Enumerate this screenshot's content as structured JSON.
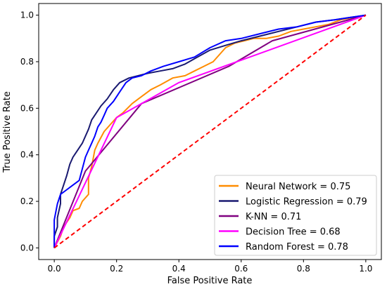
{
  "chart_data": {
    "type": "line",
    "title": "",
    "xlabel": "False Positive Rate",
    "ylabel": "True Positive Rate",
    "xlim": [
      -0.05,
      1.05
    ],
    "ylim": [
      -0.05,
      1.05
    ],
    "xticks": [
      "0.0",
      "0.2",
      "0.4",
      "0.6",
      "0.8",
      "1.0"
    ],
    "yticks": [
      "0.0",
      "0.2",
      "0.4",
      "0.6",
      "0.8",
      "1.0"
    ],
    "grid": false,
    "legend_position": "bottom-right",
    "series": [
      {
        "name": "Neural Network  = 0.75",
        "color": "#ff8c00",
        "points": [
          [
            0.0,
            0.0
          ],
          [
            0.02,
            0.05
          ],
          [
            0.03,
            0.09
          ],
          [
            0.05,
            0.13
          ],
          [
            0.06,
            0.16
          ],
          [
            0.08,
            0.17
          ],
          [
            0.09,
            0.2
          ],
          [
            0.11,
            0.23
          ],
          [
            0.11,
            0.3
          ],
          [
            0.12,
            0.35
          ],
          [
            0.13,
            0.42
          ],
          [
            0.14,
            0.45
          ],
          [
            0.16,
            0.5
          ],
          [
            0.18,
            0.53
          ],
          [
            0.2,
            0.56
          ],
          [
            0.22,
            0.58
          ],
          [
            0.25,
            0.62
          ],
          [
            0.28,
            0.65
          ],
          [
            0.31,
            0.68
          ],
          [
            0.34,
            0.7
          ],
          [
            0.38,
            0.73
          ],
          [
            0.42,
            0.74
          ],
          [
            0.45,
            0.76
          ],
          [
            0.48,
            0.78
          ],
          [
            0.51,
            0.8
          ],
          [
            0.55,
            0.86
          ],
          [
            0.58,
            0.88
          ],
          [
            0.61,
            0.89
          ],
          [
            0.64,
            0.9
          ],
          [
            0.68,
            0.9
          ],
          [
            0.72,
            0.91
          ],
          [
            0.76,
            0.93
          ],
          [
            0.8,
            0.94
          ],
          [
            0.84,
            0.95
          ],
          [
            0.88,
            0.96
          ],
          [
            0.92,
            0.98
          ],
          [
            0.96,
            0.99
          ],
          [
            1.0,
            1.0
          ]
        ]
      },
      {
        "name": "Logistic Regression = 0.79",
        "color": "#191970",
        "points": [
          [
            0.0,
            0.0
          ],
          [
            0.0,
            0.05
          ],
          [
            0.01,
            0.09
          ],
          [
            0.01,
            0.13
          ],
          [
            0.02,
            0.19
          ],
          [
            0.02,
            0.23
          ],
          [
            0.03,
            0.27
          ],
          [
            0.04,
            0.31
          ],
          [
            0.05,
            0.36
          ],
          [
            0.06,
            0.39
          ],
          [
            0.07,
            0.41
          ],
          [
            0.08,
            0.43
          ],
          [
            0.09,
            0.45
          ],
          [
            0.1,
            0.48
          ],
          [
            0.11,
            0.51
          ],
          [
            0.12,
            0.55
          ],
          [
            0.13,
            0.57
          ],
          [
            0.15,
            0.61
          ],
          [
            0.17,
            0.64
          ],
          [
            0.19,
            0.68
          ],
          [
            0.21,
            0.71
          ],
          [
            0.24,
            0.73
          ],
          [
            0.27,
            0.74
          ],
          [
            0.3,
            0.75
          ],
          [
            0.34,
            0.76
          ],
          [
            0.38,
            0.77
          ],
          [
            0.42,
            0.79
          ],
          [
            0.46,
            0.82
          ],
          [
            0.5,
            0.85
          ],
          [
            0.55,
            0.87
          ],
          [
            0.6,
            0.89
          ],
          [
            0.66,
            0.91
          ],
          [
            0.72,
            0.93
          ],
          [
            0.78,
            0.95
          ],
          [
            0.84,
            0.97
          ],
          [
            0.9,
            0.98
          ],
          [
            0.95,
            0.99
          ],
          [
            1.0,
            1.0
          ]
        ]
      },
      {
        "name": "K-NN = 0.71",
        "color": "#800080",
        "points": [
          [
            0.0,
            0.0
          ],
          [
            0.1,
            0.33
          ],
          [
            0.28,
            0.62
          ],
          [
            0.56,
            0.78
          ],
          [
            0.7,
            0.89
          ],
          [
            1.0,
            1.0
          ]
        ]
      },
      {
        "name": "Decision Tree = 0.68",
        "color": "#ff00ff",
        "points": [
          [
            0.0,
            0.0
          ],
          [
            0.2,
            0.56
          ],
          [
            0.4,
            0.71
          ],
          [
            1.0,
            1.0
          ]
        ]
      },
      {
        "name": "Random Forest = 0.78",
        "color": "#0000ff",
        "points": [
          [
            0.0,
            0.0
          ],
          [
            0.0,
            0.12
          ],
          [
            0.01,
            0.19
          ],
          [
            0.02,
            0.23
          ],
          [
            0.04,
            0.25
          ],
          [
            0.06,
            0.27
          ],
          [
            0.08,
            0.29
          ],
          [
            0.09,
            0.34
          ],
          [
            0.1,
            0.39
          ],
          [
            0.11,
            0.42
          ],
          [
            0.12,
            0.45
          ],
          [
            0.13,
            0.48
          ],
          [
            0.14,
            0.52
          ],
          [
            0.15,
            0.54
          ],
          [
            0.16,
            0.57
          ],
          [
            0.17,
            0.6
          ],
          [
            0.19,
            0.63
          ],
          [
            0.21,
            0.67
          ],
          [
            0.23,
            0.71
          ],
          [
            0.25,
            0.73
          ],
          [
            0.28,
            0.74
          ],
          [
            0.31,
            0.76
          ],
          [
            0.35,
            0.78
          ],
          [
            0.4,
            0.8
          ],
          [
            0.45,
            0.82
          ],
          [
            0.5,
            0.86
          ],
          [
            0.55,
            0.89
          ],
          [
            0.6,
            0.9
          ],
          [
            0.66,
            0.92
          ],
          [
            0.72,
            0.94
          ],
          [
            0.78,
            0.95
          ],
          [
            0.84,
            0.97
          ],
          [
            0.9,
            0.98
          ],
          [
            0.95,
            0.99
          ],
          [
            1.0,
            1.0
          ]
        ]
      }
    ],
    "reference_line": {
      "color": "#ff0000",
      "style": "dashed",
      "points": [
        [
          0.0,
          0.0
        ],
        [
          1.0,
          1.0
        ]
      ]
    }
  }
}
